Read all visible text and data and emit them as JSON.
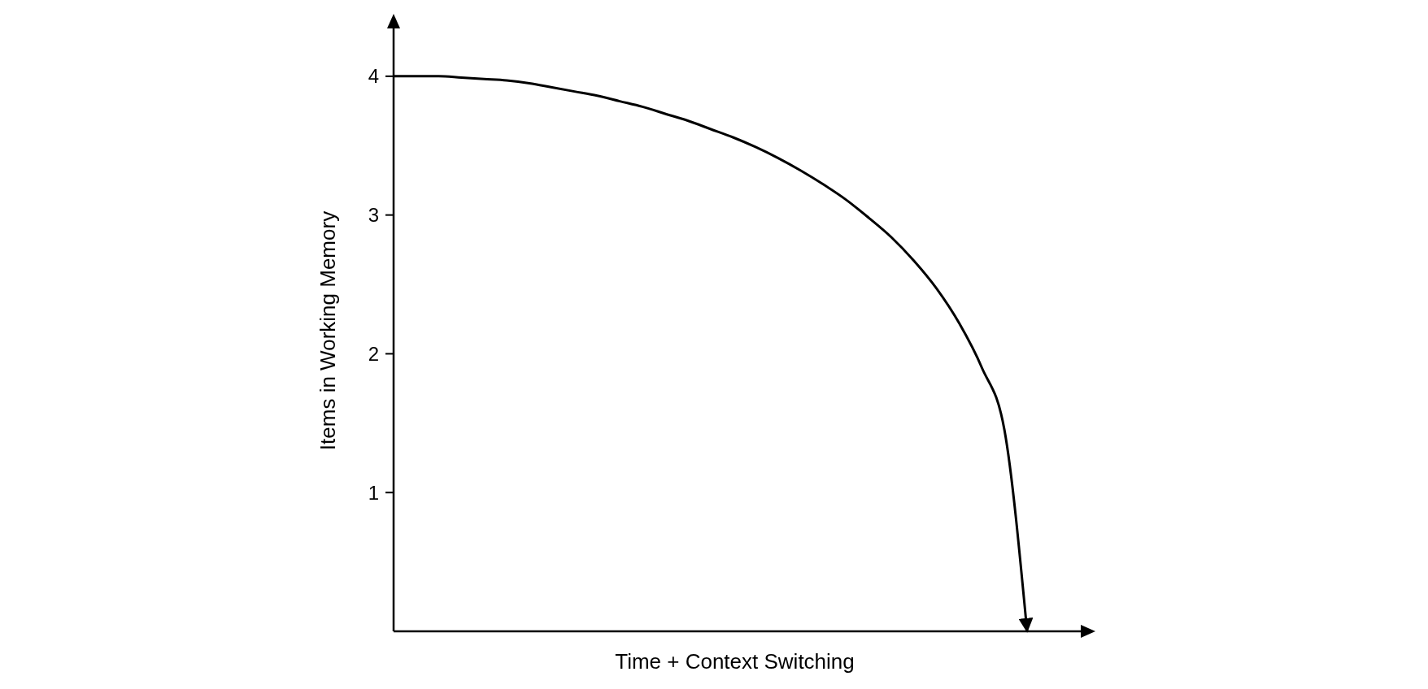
{
  "chart_data": {
    "type": "line",
    "xlabel": "Time + Context Switching",
    "ylabel": "Items in Working Memory",
    "categories": [
      null,
      null,
      null,
      null,
      null,
      null,
      null,
      null,
      null,
      null,
      null,
      null,
      null,
      null,
      null,
      null,
      null,
      null,
      null,
      null,
      null,
      null,
      null,
      null,
      null,
      null,
      null,
      null,
      null
    ],
    "series": [
      {
        "color": "#000000",
        "values": [
          4,
          4,
          4,
          3.99,
          3.98,
          3.97,
          3.95,
          3.92,
          3.89,
          3.86,
          3.82,
          3.78,
          3.73,
          3.68,
          3.62,
          3.56,
          3.49,
          3.41,
          3.32,
          3.22,
          3.11,
          2.98,
          2.84,
          2.67,
          2.47,
          2.22,
          1.9,
          1.45,
          0
        ]
      }
    ],
    "ylim": [
      0,
      4.45
    ],
    "yticks": [
      1,
      2,
      3,
      4
    ],
    "grid": false,
    "marker": "none",
    "line_style": "solid",
    "tick_labels": "y"
  }
}
